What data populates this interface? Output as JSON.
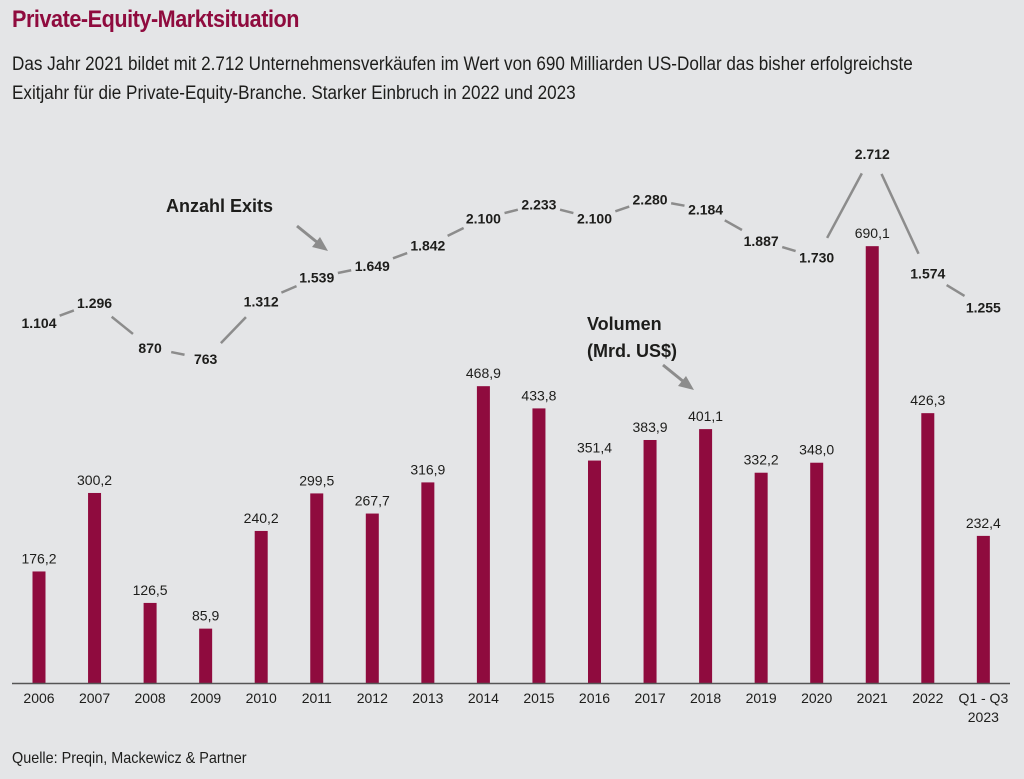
{
  "header": {
    "title": "Private-Equity-Marktsituation",
    "subtitle": "Das Jahr 2021 bildet mit 2.712 Unternehmensverkäufen im Wert von 690 Milliarden US-Dollar das bisher erfolgreichste Exitjahr für die Private-Equity-Branche. Starker Einbruch in 2022 und 2023"
  },
  "footer": {
    "source": "Quelle: Preqin, Mackewicz & Partner"
  },
  "colors": {
    "accent": "#8f0b3e",
    "line": "#8c8c8c",
    "background": "#e4e5e7"
  },
  "chart_data": {
    "type": "bar",
    "title": "Private-Equity-Marktsituation",
    "xlabel": "",
    "ylabel": "",
    "grid": false,
    "categories": [
      "2006",
      "2007",
      "2008",
      "2009",
      "2010",
      "2011",
      "2012",
      "2013",
      "2014",
      "2015",
      "2016",
      "2017",
      "2018",
      "2019",
      "2020",
      "2021",
      "2022",
      "Q1 - Q3\n2023"
    ],
    "series": [
      {
        "name": "Volumen (Mrd. US$)",
        "type": "bar",
        "values": [
          176.2,
          300.2,
          126.5,
          85.9,
          240.2,
          299.5,
          267.7,
          316.9,
          468.9,
          433.8,
          351.4,
          383.9,
          401.1,
          332.2,
          348.0,
          690.1,
          426.3,
          232.4
        ],
        "labels": [
          "176,2",
          "300,2",
          "126,5",
          "85,9",
          "240,2",
          "299,5",
          "267,7",
          "316,9",
          "468,9",
          "433,8",
          "351,4",
          "383,9",
          "401,1",
          "332,2",
          "348,0",
          "690,1",
          "426,3",
          "232,4"
        ]
      },
      {
        "name": "Anzahl Exits",
        "type": "line",
        "values": [
          1104,
          1296,
          870,
          763,
          1312,
          1539,
          1649,
          1842,
          2100,
          2233,
          2100,
          2280,
          2184,
          1887,
          1730,
          2712,
          1574,
          1255
        ],
        "labels": [
          "1.104",
          "1.296",
          "870",
          "763",
          "1.312",
          "1.539",
          "1.649",
          "1.842",
          "2.100",
          "2.233",
          "2.100",
          "2.280",
          "2.184",
          "1.887",
          "1.730",
          "2.712",
          "1.574",
          "1.255"
        ]
      }
    ],
    "annotations": {
      "exits": "Anzahl Exits",
      "volume_line1": "Volumen",
      "volume_line2": "(Mrd. US$)"
    },
    "legend": "none (inline annotations with arrows)"
  }
}
